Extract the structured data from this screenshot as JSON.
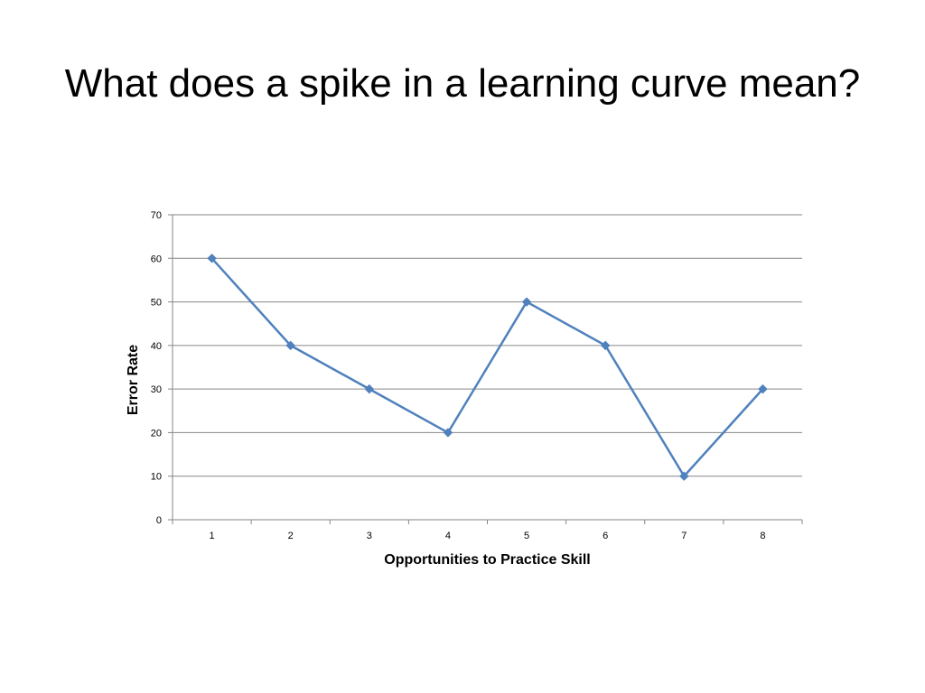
{
  "slide": {
    "title": "What does a spike in a learning curve mean?"
  },
  "chart_data": {
    "type": "line",
    "title": "",
    "xlabel": "Opportunities to Practice Skill",
    "ylabel": "Error Rate",
    "categories": [
      "1",
      "2",
      "3",
      "4",
      "5",
      "6",
      "7",
      "8"
    ],
    "series": [
      {
        "values": [
          60,
          40,
          30,
          20,
          50,
          40,
          10,
          30
        ],
        "color": "#4f81bd"
      }
    ],
    "ylim": [
      0,
      70
    ],
    "yticks": [
      "0",
      "10",
      "20",
      "30",
      "40",
      "50",
      "60",
      "70"
    ],
    "grid": true,
    "legend": "none",
    "colors": {
      "line": "#4f81bd",
      "grid": "#868686",
      "axis": "#868686"
    }
  }
}
